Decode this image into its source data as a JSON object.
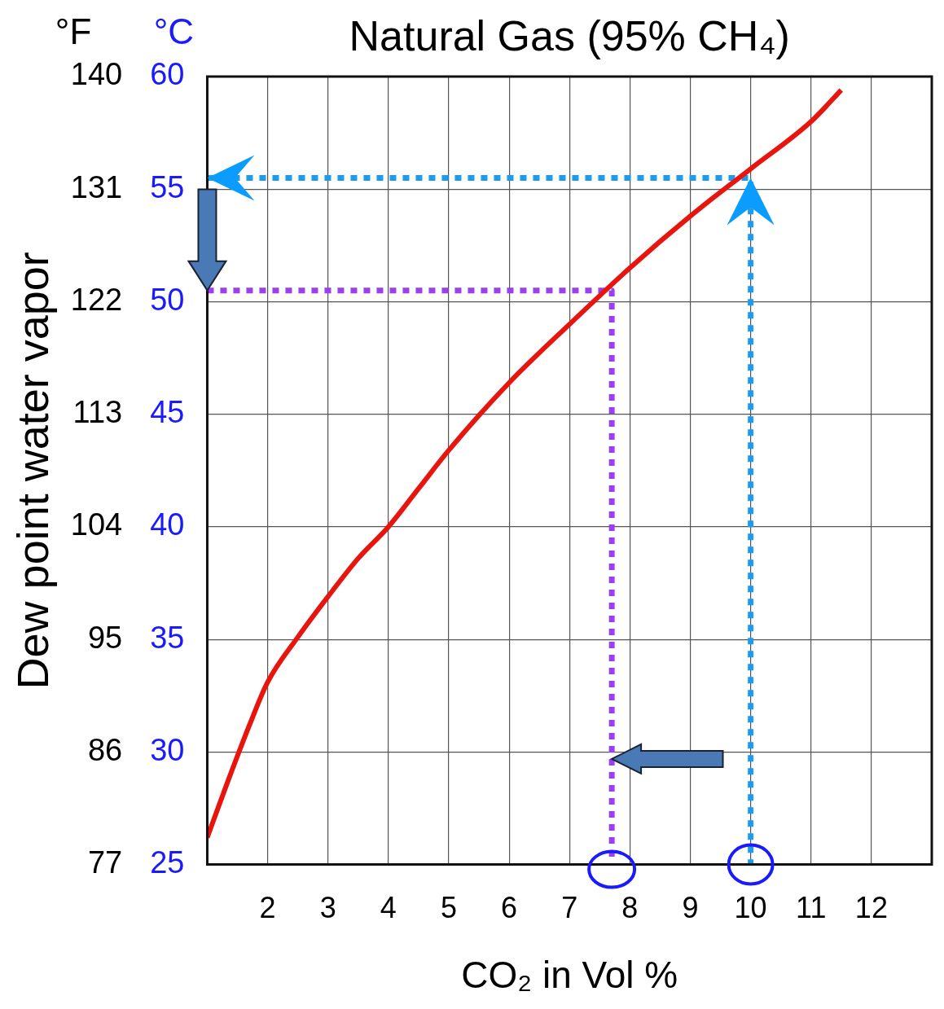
{
  "chart_data": {
    "type": "line",
    "title": "Natural Gas (95% CH₄)",
    "xlabel": "CO₂ in Vol %",
    "y2label": "Dew point water vapor",
    "annotations": [
      "°F",
      "°C"
    ],
    "xlim": [
      1,
      13
    ],
    "xticks": [
      2,
      3,
      4,
      5,
      6,
      7,
      8,
      9,
      10,
      11,
      12
    ],
    "ylim": [
      25,
      60
    ],
    "yticks": [
      25,
      30,
      35,
      40,
      45,
      50,
      55,
      60
    ],
    "y2lim": [
      77,
      140
    ],
    "y2ticks": [
      77,
      86,
      95,
      104,
      113,
      122,
      131,
      140
    ],
    "grid": true,
    "marker": "none",
    "series": [
      {
        "color": "#e8150f",
        "line_style": "solid",
        "x": [
          1,
          1.3,
          1.7,
          2,
          2.5,
          3,
          3.5,
          4,
          4.5,
          5,
          6,
          7,
          8,
          9,
          10,
          11,
          11.5
        ],
        "values": [
          26.2,
          28.4,
          31.2,
          33.1,
          35.1,
          36.9,
          38.6,
          40,
          41.7,
          43.4,
          46.4,
          49,
          51.5,
          53.8,
          55.9,
          58,
          59.4
        ]
      },
      {
        "color": "#1e9bef",
        "line_style": "dotted",
        "x": [
          1,
          10,
          10
        ],
        "values": [
          55.5,
          55.5,
          25
        ]
      },
      {
        "color": "#9b3ff0",
        "line_style": "dotted",
        "x": [
          1,
          7.7,
          7.7
        ],
        "values": [
          50.5,
          50.5,
          25
        ]
      }
    ]
  }
}
